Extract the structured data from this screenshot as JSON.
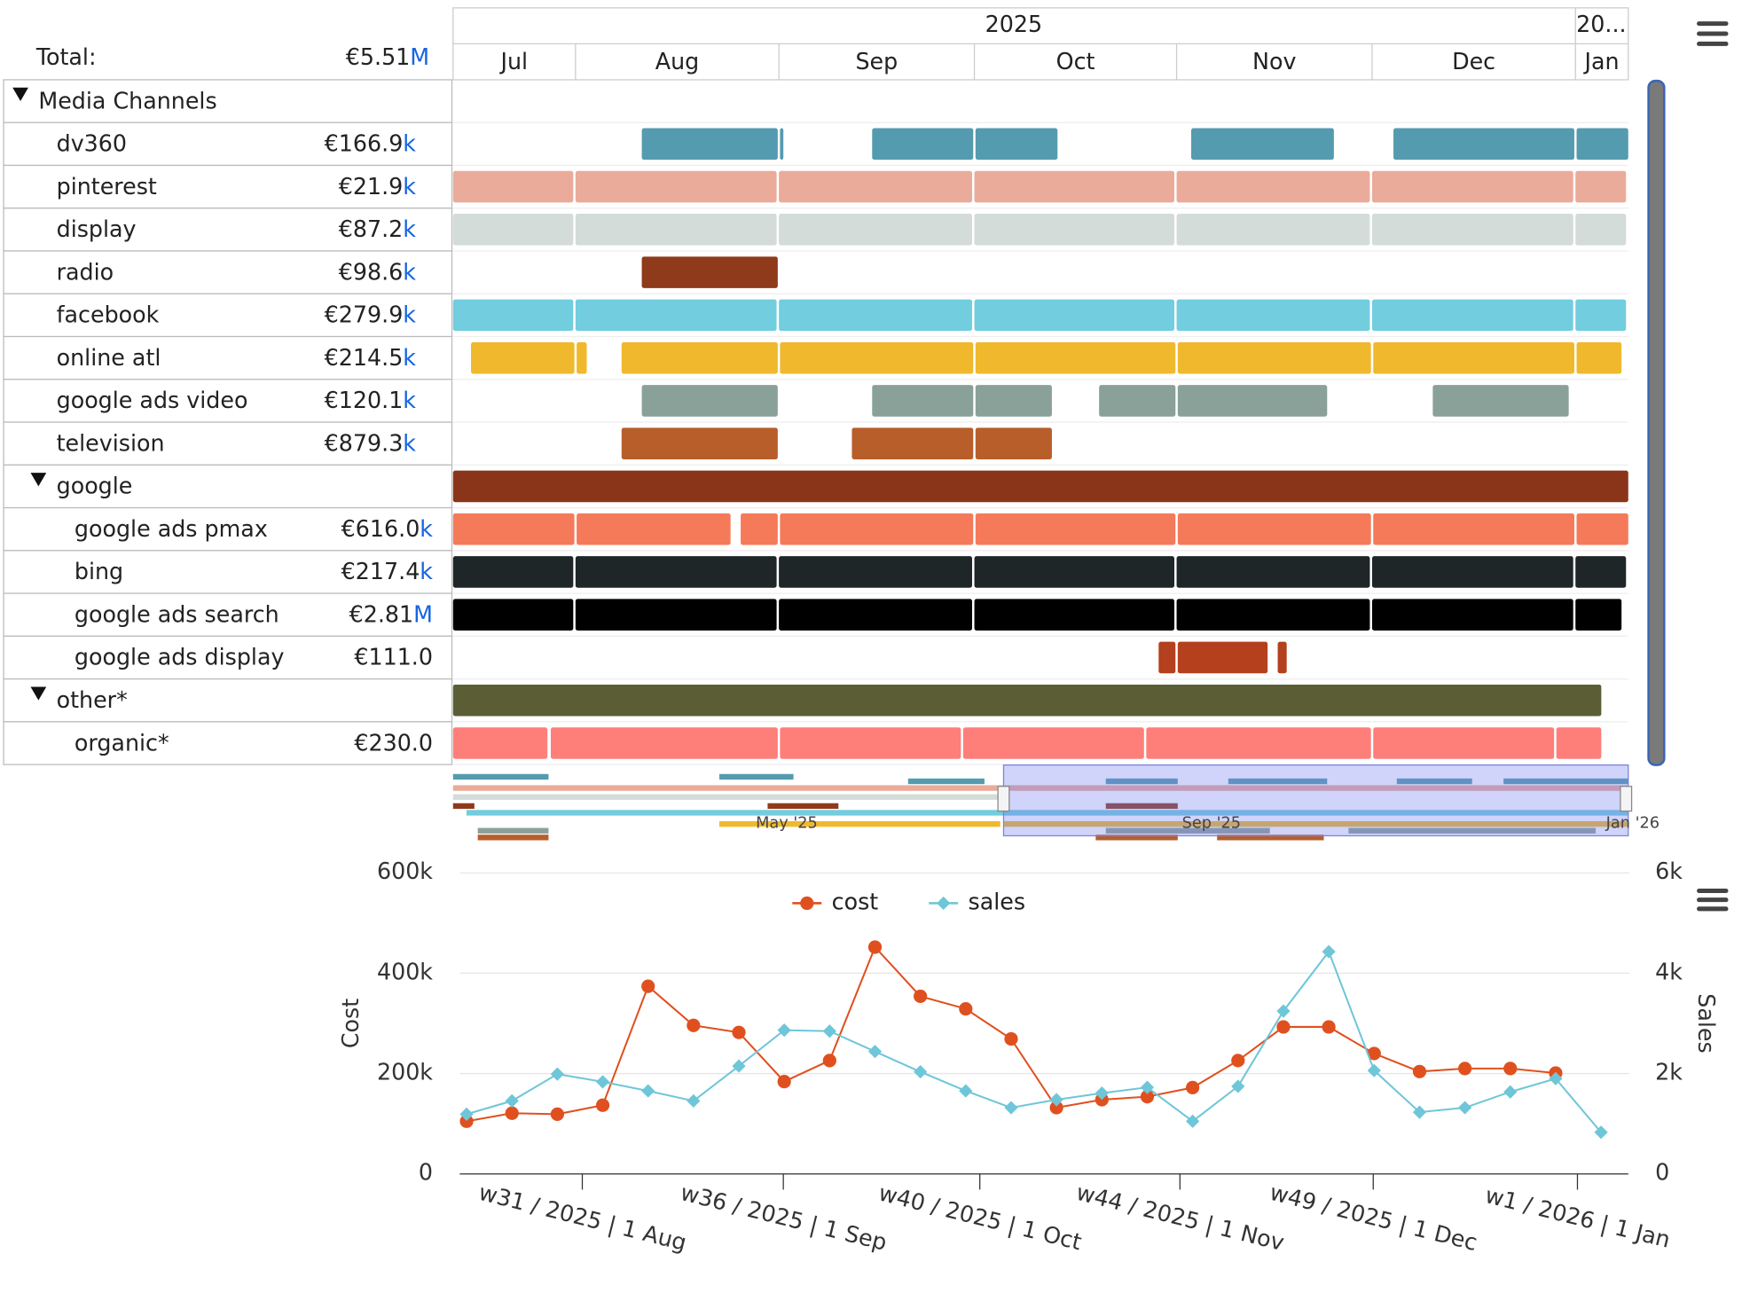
{
  "gantt": {
    "total": {
      "label": "Total:",
      "amount": "€5.51",
      "unit": "M"
    },
    "header": {
      "years": [
        "2025",
        "20..."
      ],
      "months": [
        "Jul",
        "Aug",
        "Sep",
        "Oct",
        "Nov",
        "Dec",
        "Jan"
      ]
    },
    "rows": [
      {
        "name": "Media Channels",
        "depth": 0,
        "expanded": true
      },
      {
        "name": "dv360",
        "depth": 1,
        "amount": "€166.9",
        "unit": "k",
        "color": "#559bb0"
      },
      {
        "name": "pinterest",
        "depth": 1,
        "amount": "€21.9",
        "unit": "k",
        "color": "#ebab9a"
      },
      {
        "name": "display",
        "depth": 1,
        "amount": "€87.2",
        "unit": "k",
        "color": "#d3dcd8"
      },
      {
        "name": "radio",
        "depth": 1,
        "amount": "€98.6",
        "unit": "k",
        "color": "#8e3a1b"
      },
      {
        "name": "facebook",
        "depth": 1,
        "amount": "€279.9",
        "unit": "k",
        "color": "#72cddf"
      },
      {
        "name": "online atl",
        "depth": 1,
        "amount": "€214.5",
        "unit": "k",
        "color": "#f0b92d"
      },
      {
        "name": "google ads video",
        "depth": 1,
        "amount": "€120.1",
        "unit": "k",
        "color": "#8aa19a"
      },
      {
        "name": "television",
        "depth": 1,
        "amount": "€879.3",
        "unit": "k",
        "color": "#b85e2a"
      },
      {
        "name": "google",
        "depth": 1,
        "expanded": true,
        "color": "#8a3519"
      },
      {
        "name": "google ads pmax",
        "depth": 2,
        "amount": "€616.0",
        "unit": "k",
        "color": "#f47a5a"
      },
      {
        "name": "bing",
        "depth": 2,
        "amount": "€217.4",
        "unit": "k",
        "color": "#1e2628"
      },
      {
        "name": "google ads search",
        "depth": 2,
        "amount": "€2.81",
        "unit": "M",
        "color": "#000000"
      },
      {
        "name": "google ads display",
        "depth": 2,
        "amount": "€111.0",
        "color": "#b5401e"
      },
      {
        "name": "other*",
        "depth": 1,
        "expanded": true,
        "color": "#5b5e35"
      },
      {
        "name": "organic*",
        "depth": 2,
        "amount": "€230.0",
        "color": "#fe7f7a"
      }
    ],
    "navigator": {
      "labels": [
        "May '25",
        "Sep '25",
        "Jan '26"
      ]
    }
  },
  "chart_data": {
    "type": "line",
    "x": [
      0,
      1,
      2,
      3,
      4,
      5,
      6,
      7,
      8,
      9,
      10,
      11,
      12,
      13,
      14,
      15,
      16,
      17,
      18,
      19,
      20,
      21,
      22,
      23,
      24,
      25
    ],
    "xlim": [
      -0.15,
      25.6
    ],
    "xticks": [
      {
        "value": 2.55,
        "label": "w31 / 2025 | 1 Aug"
      },
      {
        "value": 6.98,
        "label": "w36 / 2025 | 1 Sep"
      },
      {
        "value": 11.31,
        "label": "w40 / 2025 | 1 Oct"
      },
      {
        "value": 15.72,
        "label": "w44 / 2025 | 1 Nov"
      },
      {
        "value": 19.98,
        "label": "w49 / 2025 | 1 Dec"
      },
      {
        "value": 24.48,
        "label": "w1 / 2026 | 1 Jan"
      }
    ],
    "ylabel": "Cost",
    "y2label": "Sales",
    "ylim": [
      0,
      600000
    ],
    "yticks": [
      0,
      {
        "value": 200000,
        "label": "200k"
      },
      {
        "value": 400000,
        "label": "400k"
      },
      {
        "value": 600000,
        "label": "600k"
      }
    ],
    "y2lim": [
      0,
      6000
    ],
    "y2ticks": [
      0,
      {
        "value": 2000,
        "label": "2k"
      },
      {
        "value": 4000,
        "label": "4k"
      },
      {
        "value": 6000,
        "label": "6k"
      }
    ],
    "grid": true,
    "legend": "top",
    "series": [
      {
        "name": "cost",
        "color": "#e0501f",
        "marker": "circle",
        "values": [
          105000,
          121000,
          119000,
          137000,
          374000,
          296000,
          282000,
          184000,
          226000,
          452000,
          354000,
          329000,
          269000,
          132000,
          148000,
          154000,
          172000,
          226000,
          293000,
          293000,
          240000,
          204000,
          210000,
          210000,
          201000,
          null
        ]
      },
      {
        "name": "sales",
        "color": "#6ec6d9",
        "marker": "diamond",
        "axis": "y2",
        "values": [
          1190,
          1455,
          1990,
          1835,
          1655,
          1455,
          2150,
          2865,
          2845,
          2440,
          2035,
          1655,
          1320,
          1480,
          1610,
          1725,
          1050,
          1745,
          3245,
          4430,
          2060,
          1230,
          1320,
          1635,
          1900,
          830
        ]
      }
    ]
  }
}
